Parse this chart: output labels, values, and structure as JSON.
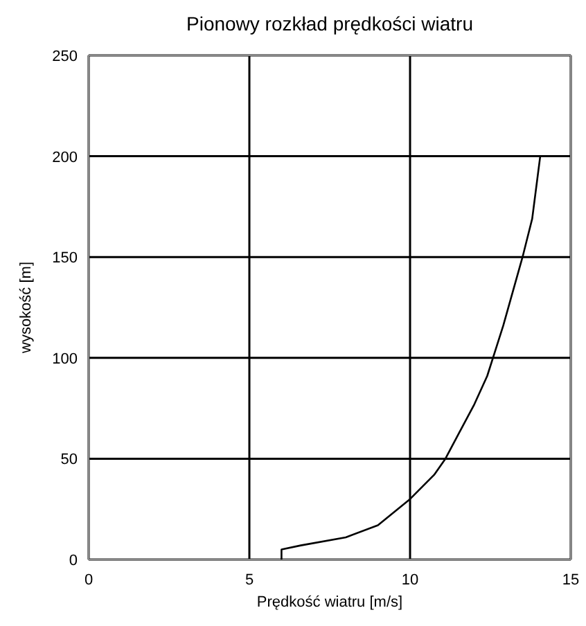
{
  "chart_data": {
    "type": "line",
    "title": "Pionowy rozkład prędkości wiatru",
    "xlabel": "Prędkość wiatru [m/s]",
    "ylabel": "wysokość [m]",
    "xlim": [
      0,
      15
    ],
    "xticks": [
      0,
      5,
      10,
      15
    ],
    "ylim": [
      0,
      250
    ],
    "yticks": [
      0,
      50,
      100,
      150,
      200,
      250
    ],
    "grid": true,
    "marker": "none",
    "line_style": "solid",
    "series": [
      {
        "color": "#000000",
        "x": [
          6,
          6,
          6.6,
          8,
          9,
          10,
          10.75,
          11.1,
          11.5,
          12,
          12.4,
          12.9,
          13.5,
          13.8,
          14.05
        ],
        "values": [
          0,
          5,
          7,
          11,
          17,
          30,
          42,
          50,
          62,
          77,
          91,
          116,
          150,
          169,
          200
        ]
      }
    ]
  }
}
